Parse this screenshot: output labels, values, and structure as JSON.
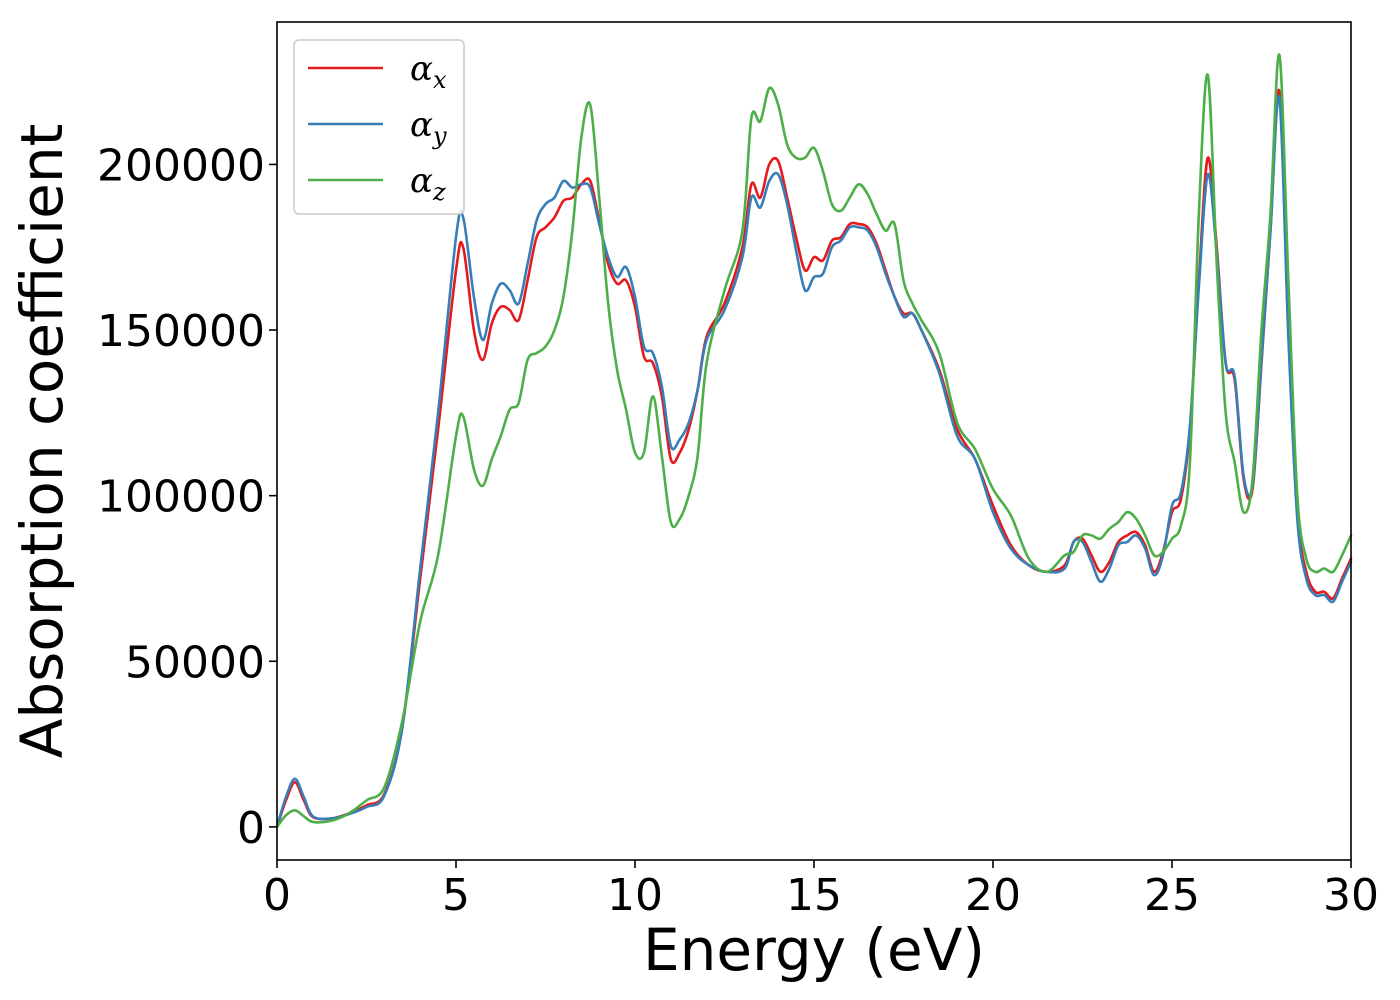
{
  "chart_data": {
    "type": "line",
    "xlabel": "Energy (eV)",
    "ylabel": "Absorption coefficient",
    "xlim": [
      0,
      30
    ],
    "ylim": [
      -10000,
      243000
    ],
    "xticks": [
      "0",
      "5",
      "10",
      "15",
      "20",
      "25",
      "30"
    ],
    "yticks": [
      "0",
      "50000",
      "100000",
      "150000",
      "200000"
    ],
    "grid": false,
    "legend_position": "top-left",
    "x": [
      0,
      0.25,
      0.5,
      0.75,
      1.0,
      1.5,
      2.0,
      2.5,
      3.0,
      3.5,
      4.0,
      4.5,
      5.0,
      5.2,
      5.5,
      5.75,
      6.0,
      6.25,
      6.5,
      6.75,
      7.0,
      7.25,
      7.5,
      7.75,
      8.0,
      8.25,
      8.5,
      8.75,
      9.0,
      9.25,
      9.5,
      9.75,
      10.0,
      10.25,
      10.5,
      10.75,
      11.0,
      11.25,
      11.5,
      11.75,
      12.0,
      12.5,
      13.0,
      13.25,
      13.5,
      13.75,
      14.0,
      14.25,
      14.5,
      14.75,
      15.0,
      15.25,
      15.5,
      15.75,
      16.0,
      16.25,
      16.5,
      16.75,
      17.0,
      17.25,
      17.5,
      17.75,
      18.0,
      18.5,
      19.0,
      19.5,
      20.0,
      20.5,
      21.0,
      21.5,
      22.0,
      22.25,
      22.5,
      22.75,
      23.0,
      23.25,
      23.5,
      23.75,
      24.0,
      24.25,
      24.5,
      24.75,
      25.0,
      25.25,
      25.5,
      25.75,
      26.0,
      26.25,
      26.5,
      26.75,
      27.0,
      27.25,
      27.5,
      27.75,
      28.0,
      28.25,
      28.5,
      28.75,
      29.0,
      29.25,
      29.5,
      29.75,
      30.0
    ],
    "series": [
      {
        "name": "αx",
        "label_base": "α",
        "label_sub": "x",
        "color": "#e41a1c",
        "values": [
          0,
          8000,
          13500,
          8000,
          3000,
          2500,
          4000,
          6500,
          10000,
          30000,
          75000,
          120000,
          168000,
          175000,
          150000,
          141000,
          152000,
          157000,
          156000,
          153000,
          165000,
          178000,
          181000,
          184000,
          189000,
          190000,
          194000,
          195000,
          183000,
          170000,
          164000,
          165000,
          157000,
          142000,
          140000,
          130000,
          111000,
          113000,
          120000,
          132000,
          148000,
          158000,
          175000,
          194000,
          190000,
          200000,
          201000,
          190000,
          178000,
          168000,
          172000,
          171000,
          177000,
          178000,
          182000,
          182000,
          181000,
          176000,
          168000,
          160000,
          155000,
          155000,
          150000,
          138000,
          120000,
          111000,
          97000,
          85000,
          79000,
          77000,
          79000,
          86000,
          87000,
          82000,
          77000,
          80000,
          86000,
          88000,
          89000,
          85000,
          77000,
          83000,
          95000,
          99000,
          120000,
          165000,
          202000,
          175000,
          140000,
          135000,
          105000,
          102000,
          140000,
          180000,
          222000,
          150000,
          95000,
          77000,
          71000,
          71000,
          69000,
          75000,
          81000
        ]
      },
      {
        "name": "αy",
        "label_base": "α",
        "label_sub": "y",
        "color": "#377eb8",
        "values": [
          0,
          9000,
          14500,
          9000,
          3200,
          2500,
          3800,
          6000,
          9500,
          30000,
          78000,
          125000,
          178000,
          184000,
          160000,
          147000,
          158000,
          164000,
          162000,
          158000,
          170000,
          183000,
          188000,
          190000,
          195000,
          193000,
          194000,
          193000,
          182000,
          172000,
          166000,
          169000,
          160000,
          145000,
          143000,
          133000,
          115000,
          117000,
          122000,
          132000,
          147000,
          156000,
          172000,
          190000,
          187000,
          195000,
          197000,
          188000,
          174000,
          162000,
          166000,
          167000,
          175000,
          177000,
          181000,
          181000,
          180000,
          175000,
          167000,
          160000,
          154000,
          155000,
          150000,
          137000,
          118000,
          111000,
          95000,
          84000,
          79000,
          77000,
          78000,
          86000,
          86000,
          80000,
          74000,
          78000,
          85000,
          86000,
          88000,
          84000,
          76000,
          82000,
          97000,
          101000,
          121000,
          163000,
          197000,
          173000,
          140000,
          136000,
          106000,
          103000,
          141000,
          180000,
          220000,
          148000,
          93000,
          75000,
          70000,
          70000,
          68000,
          74000,
          80000
        ]
      },
      {
        "name": "αz",
        "label_base": "α",
        "label_sub": "z",
        "color": "#4daf4a",
        "values": [
          0,
          3500,
          5000,
          3200,
          1500,
          1800,
          4000,
          8000,
          12000,
          32000,
          62000,
          82000,
          118000,
          124000,
          108000,
          103000,
          111000,
          118000,
          126000,
          128000,
          141000,
          143000,
          145000,
          150000,
          160000,
          180000,
          208000,
          218000,
          190000,
          158000,
          138000,
          126000,
          113000,
          113000,
          130000,
          112000,
          92000,
          93000,
          100000,
          112000,
          140000,
          162000,
          180000,
          214000,
          213000,
          223000,
          218000,
          206000,
          202000,
          202000,
          205000,
          198000,
          188000,
          186000,
          190000,
          194000,
          191000,
          185000,
          180000,
          182000,
          165000,
          158000,
          153000,
          143000,
          122000,
          114000,
          102000,
          94000,
          81000,
          77000,
          82000,
          83000,
          88000,
          88000,
          87000,
          90000,
          92000,
          95000,
          93000,
          88000,
          82000,
          83000,
          87000,
          91000,
          110000,
          185000,
          227000,
          170000,
          125000,
          110000,
          95000,
          105000,
          150000,
          185000,
          233000,
          165000,
          100000,
          81000,
          77000,
          78000,
          77000,
          82000,
          88000
        ]
      }
    ]
  }
}
